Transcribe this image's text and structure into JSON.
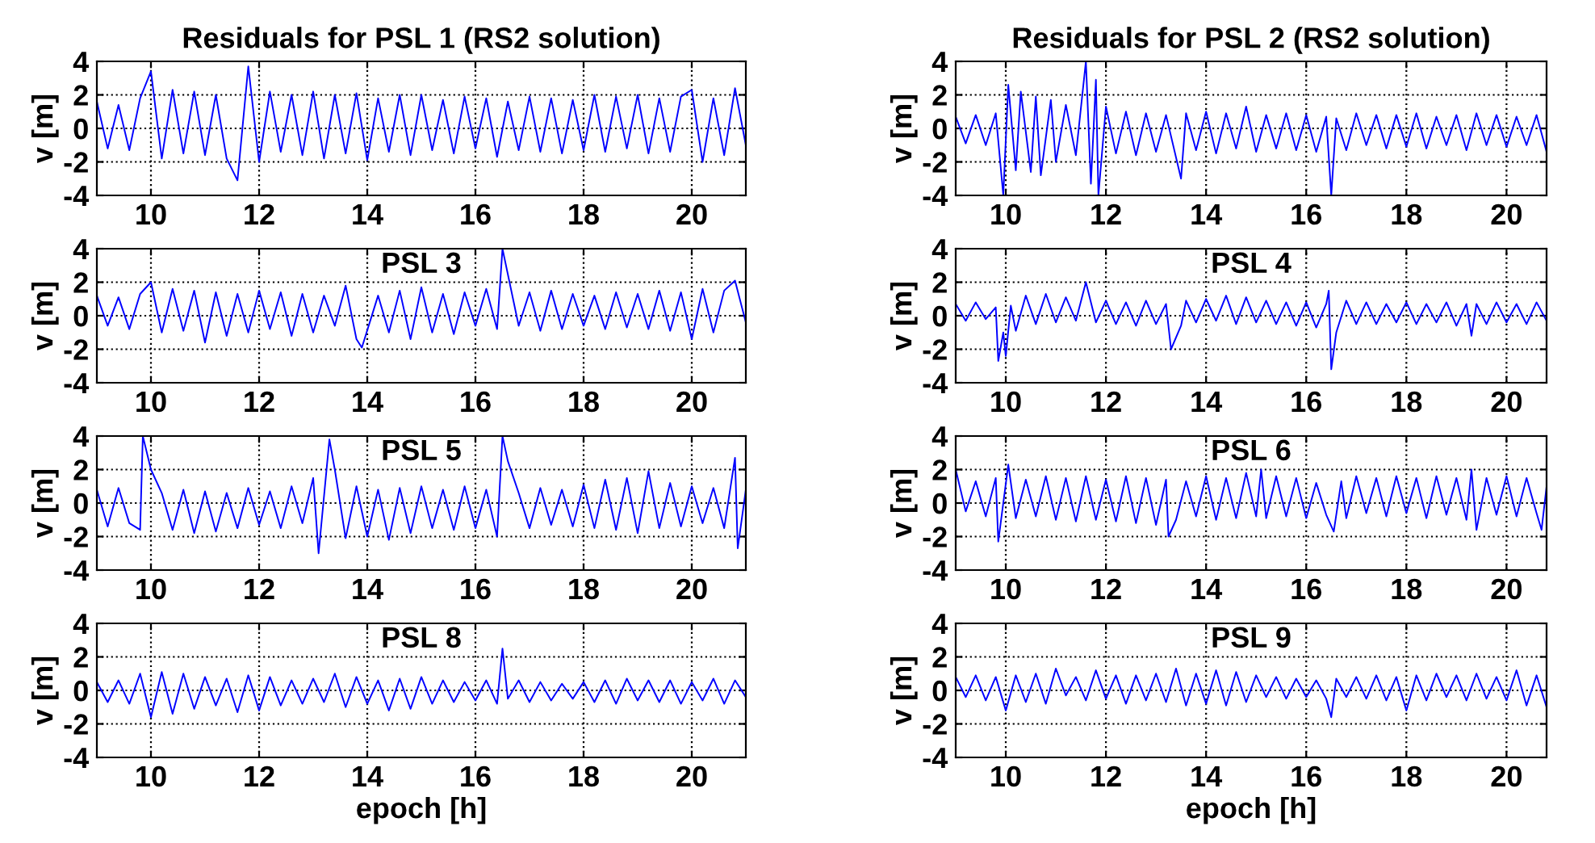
{
  "chart_data": [
    {
      "type": "line",
      "title": "Residuals for PSL 1 (RS2 solution)",
      "ylabel": "v [m]",
      "xlim": [
        9,
        21
      ],
      "ylim": [
        -4,
        4
      ],
      "xticks": [
        10,
        12,
        14,
        16,
        18,
        20
      ],
      "yticks": [
        -4,
        -2,
        0,
        2,
        4
      ],
      "grid": true,
      "line_style": "solid",
      "x": [
        9.0,
        9.2,
        9.4,
        9.6,
        9.8,
        10.0,
        10.2,
        10.4,
        10.6,
        10.8,
        11.0,
        11.2,
        11.4,
        11.6,
        11.8,
        12.0,
        12.2,
        12.4,
        12.6,
        12.8,
        13.0,
        13.2,
        13.4,
        13.6,
        13.8,
        14.0,
        14.2,
        14.4,
        14.6,
        14.8,
        15.0,
        15.2,
        15.4,
        15.6,
        15.8,
        16.0,
        16.2,
        16.4,
        16.6,
        16.8,
        17.0,
        17.2,
        17.4,
        17.6,
        17.8,
        18.0,
        18.2,
        18.4,
        18.6,
        18.8,
        19.0,
        19.2,
        19.4,
        19.6,
        19.8,
        20.0,
        20.2,
        20.4,
        20.6,
        20.8,
        21.0
      ],
      "series": [
        {
          "color": "#0000ff",
          "values": [
            1.6,
            -1.2,
            1.4,
            -1.3,
            1.8,
            3.4,
            -1.8,
            2.3,
            -1.5,
            2.2,
            -1.6,
            2.0,
            -1.8,
            -3.1,
            3.7,
            -2.0,
            2.2,
            -1.4,
            2.0,
            -1.6,
            2.2,
            -1.8,
            2.0,
            -1.5,
            2.1,
            -1.9,
            1.8,
            -1.4,
            2.0,
            -1.6,
            2.0,
            -1.3,
            1.7,
            -1.5,
            1.9,
            -1.2,
            1.8,
            -1.7,
            1.6,
            -1.3,
            1.9,
            -1.4,
            1.8,
            -1.5,
            1.7,
            -1.3,
            2.0,
            -1.4,
            1.9,
            -1.2,
            2.0,
            -1.5,
            1.8,
            -1.4,
            1.9,
            2.3,
            -2.0,
            1.8,
            -1.6,
            2.4,
            -1.0
          ]
        }
      ]
    },
    {
      "type": "line",
      "title": "Residuals for PSL 2 (RS2 solution)",
      "ylabel": "v [m]",
      "xlim": [
        9,
        20.8
      ],
      "ylim": [
        -4,
        4
      ],
      "xticks": [
        10,
        12,
        14,
        16,
        18,
        20
      ],
      "yticks": [
        -4,
        -2,
        0,
        2,
        4
      ],
      "grid": true,
      "line_style": "solid",
      "x": [
        9.0,
        9.2,
        9.4,
        9.6,
        9.8,
        9.95,
        10.05,
        10.2,
        10.3,
        10.5,
        10.6,
        10.7,
        10.9,
        11.0,
        11.2,
        11.4,
        11.6,
        11.7,
        11.8,
        11.85,
        12.0,
        12.2,
        12.4,
        12.6,
        12.8,
        13.0,
        13.2,
        13.5,
        13.6,
        13.8,
        14.0,
        14.2,
        14.4,
        14.6,
        14.8,
        15.0,
        15.2,
        15.4,
        15.6,
        15.8,
        16.0,
        16.2,
        16.4,
        16.5,
        16.6,
        16.8,
        17.0,
        17.2,
        17.4,
        17.6,
        17.8,
        18.0,
        18.2,
        18.4,
        18.6,
        18.8,
        19.0,
        19.2,
        19.4,
        19.6,
        19.8,
        20.0,
        20.2,
        20.4,
        20.6,
        20.8
      ],
      "series": [
        {
          "color": "#0000ff",
          "values": [
            0.7,
            -0.9,
            0.8,
            -1.0,
            0.9,
            -4.0,
            2.6,
            -2.5,
            2.2,
            -2.6,
            1.9,
            -2.8,
            1.7,
            -2.0,
            1.4,
            -1.6,
            4.0,
            -3.3,
            2.9,
            -4.0,
            1.3,
            -1.5,
            1.0,
            -1.6,
            0.9,
            -1.4,
            0.8,
            -3.0,
            0.9,
            -1.3,
            1.0,
            -1.5,
            0.9,
            -1.2,
            1.3,
            -1.4,
            0.8,
            -1.2,
            0.9,
            -1.3,
            0.8,
            -1.4,
            0.7,
            -4.0,
            0.6,
            -1.3,
            0.9,
            -1.0,
            0.8,
            -1.2,
            0.8,
            -1.1,
            0.9,
            -1.2,
            0.7,
            -1.0,
            0.8,
            -1.3,
            0.9,
            -1.0,
            0.8,
            -1.1,
            0.7,
            -1.0,
            0.8,
            -1.4
          ]
        }
      ]
    },
    {
      "type": "line",
      "title": "PSL 3",
      "ylabel": "v [m]",
      "xlim": [
        9,
        21
      ],
      "ylim": [
        -4,
        4
      ],
      "xticks": [
        10,
        12,
        14,
        16,
        18,
        20
      ],
      "yticks": [
        -4,
        -2,
        0,
        2,
        4
      ],
      "grid": true,
      "line_style": "solid",
      "x": [
        9.0,
        9.2,
        9.4,
        9.6,
        9.8,
        10.0,
        10.2,
        10.4,
        10.6,
        10.8,
        11.0,
        11.2,
        11.4,
        11.6,
        11.8,
        12.0,
        12.2,
        12.4,
        12.6,
        12.8,
        13.0,
        13.2,
        13.4,
        13.6,
        13.8,
        13.9,
        14.2,
        14.4,
        14.6,
        14.8,
        15.0,
        15.2,
        15.4,
        15.6,
        15.8,
        16.0,
        16.2,
        16.4,
        16.5,
        16.8,
        17.0,
        17.2,
        17.4,
        17.6,
        17.8,
        18.0,
        18.2,
        18.4,
        18.6,
        18.8,
        19.0,
        19.2,
        19.4,
        19.6,
        19.8,
        20.0,
        20.2,
        20.4,
        20.6,
        20.8,
        21.0
      ],
      "series": [
        {
          "color": "#0000ff",
          "values": [
            1.2,
            -0.6,
            1.1,
            -0.8,
            1.3,
            2.0,
            -1.0,
            1.6,
            -0.9,
            1.5,
            -1.6,
            1.4,
            -1.2,
            1.3,
            -1.0,
            1.5,
            -0.8,
            1.4,
            -1.2,
            1.3,
            -1.0,
            1.2,
            -0.6,
            1.8,
            -1.4,
            -1.9,
            1.2,
            -1.0,
            1.5,
            -1.4,
            1.7,
            -1.0,
            1.3,
            -1.1,
            1.4,
            -0.6,
            1.6,
            -0.8,
            4.0,
            -0.6,
            1.4,
            -0.9,
            1.5,
            -0.8,
            1.3,
            -0.6,
            1.2,
            -0.8,
            1.4,
            -0.7,
            1.3,
            -0.8,
            1.5,
            -0.9,
            1.4,
            -1.4,
            1.6,
            -1.0,
            1.5,
            2.1,
            -0.4
          ]
        }
      ]
    },
    {
      "type": "line",
      "title": "PSL 4",
      "ylabel": "v [m]",
      "xlim": [
        9,
        20.8
      ],
      "ylim": [
        -4,
        4
      ],
      "xticks": [
        10,
        12,
        14,
        16,
        18,
        20
      ],
      "yticks": [
        -4,
        -2,
        0,
        2,
        4
      ],
      "grid": true,
      "line_style": "solid",
      "x": [
        9.0,
        9.2,
        9.4,
        9.6,
        9.8,
        9.85,
        9.95,
        10.0,
        10.1,
        10.2,
        10.4,
        10.6,
        10.8,
        11.0,
        11.2,
        11.4,
        11.6,
        11.8,
        12.0,
        12.2,
        12.4,
        12.6,
        12.8,
        13.0,
        13.2,
        13.3,
        13.5,
        13.6,
        13.8,
        14.0,
        14.2,
        14.4,
        14.6,
        14.8,
        15.0,
        15.2,
        15.4,
        15.6,
        15.8,
        16.0,
        16.2,
        16.4,
        16.45,
        16.5,
        16.6,
        16.8,
        17.0,
        17.2,
        17.4,
        17.6,
        17.8,
        18.0,
        18.2,
        18.4,
        18.6,
        18.8,
        19.0,
        19.2,
        19.3,
        19.4,
        19.6,
        19.8,
        20.0,
        20.2,
        20.4,
        20.6,
        20.8
      ],
      "series": [
        {
          "color": "#0000ff",
          "values": [
            0.7,
            -0.3,
            0.8,
            -0.2,
            0.5,
            -2.7,
            -1.0,
            -2.4,
            0.6,
            -0.9,
            1.2,
            -0.5,
            1.3,
            -0.4,
            1.1,
            -0.3,
            2.0,
            -0.4,
            0.9,
            -0.5,
            0.8,
            -0.6,
            0.9,
            -0.5,
            0.7,
            -2.0,
            -0.6,
            0.9,
            -0.4,
            1.0,
            -0.3,
            1.2,
            -0.5,
            1.1,
            -0.4,
            0.9,
            -0.5,
            0.8,
            -0.6,
            0.8,
            -0.7,
            0.7,
            1.5,
            -3.2,
            -1.0,
            0.9,
            -0.5,
            0.8,
            -0.5,
            0.7,
            -0.4,
            0.8,
            -0.5,
            0.7,
            -0.4,
            0.8,
            -0.6,
            0.7,
            -1.2,
            0.7,
            -0.5,
            0.8,
            -0.4,
            0.7,
            -0.5,
            0.8,
            -0.3
          ]
        }
      ]
    },
    {
      "type": "line",
      "title": "PSL 5",
      "ylabel": "v [m]",
      "xlim": [
        9,
        21
      ],
      "ylim": [
        -4,
        4
      ],
      "xticks": [
        10,
        12,
        14,
        16,
        18,
        20
      ],
      "yticks": [
        -4,
        -2,
        0,
        2,
        4
      ],
      "grid": true,
      "line_style": "solid",
      "x": [
        9.0,
        9.2,
        9.4,
        9.6,
        9.8,
        9.85,
        10.0,
        10.2,
        10.4,
        10.6,
        10.8,
        11.0,
        11.2,
        11.4,
        11.6,
        11.8,
        12.0,
        12.2,
        12.4,
        12.6,
        12.8,
        13.0,
        13.1,
        13.3,
        13.4,
        13.6,
        13.8,
        14.0,
        14.2,
        14.4,
        14.6,
        14.8,
        15.0,
        15.2,
        15.4,
        15.6,
        15.8,
        16.0,
        16.2,
        16.4,
        16.5,
        16.6,
        16.8,
        17.0,
        17.2,
        17.4,
        17.6,
        17.8,
        18.0,
        18.2,
        18.4,
        18.6,
        18.8,
        19.0,
        19.2,
        19.4,
        19.6,
        19.8,
        20.0,
        20.2,
        20.4,
        20.6,
        20.8,
        20.85,
        21.0
      ],
      "series": [
        {
          "color": "#0000ff",
          "values": [
            0.8,
            -1.4,
            0.9,
            -1.2,
            -1.6,
            4.0,
            2.0,
            0.6,
            -1.6,
            0.8,
            -1.8,
            0.7,
            -1.7,
            0.6,
            -1.5,
            0.9,
            -1.3,
            0.7,
            -1.5,
            1.0,
            -1.2,
            1.5,
            -3.0,
            3.8,
            2.0,
            -2.1,
            1.0,
            -2.0,
            0.8,
            -2.2,
            0.9,
            -1.8,
            1.0,
            -1.5,
            0.8,
            -1.6,
            1.0,
            -1.5,
            0.8,
            -2.0,
            4.0,
            2.5,
            0.6,
            -1.5,
            0.9,
            -1.3,
            0.8,
            -1.4,
            1.1,
            -1.5,
            1.4,
            -1.6,
            1.5,
            -1.8,
            1.9,
            -1.5,
            1.2,
            -1.4,
            1.0,
            -1.2,
            0.9,
            -1.5,
            2.7,
            -2.7,
            0.8
          ]
        }
      ]
    },
    {
      "type": "line",
      "title": "PSL 6",
      "ylabel": "v [m]",
      "xlim": [
        9,
        20.8
      ],
      "ylim": [
        -4,
        4
      ],
      "xticks": [
        10,
        12,
        14,
        16,
        18,
        20
      ],
      "yticks": [
        -4,
        -2,
        0,
        2,
        4
      ],
      "grid": true,
      "line_style": "solid",
      "x": [
        9.0,
        9.2,
        9.4,
        9.6,
        9.8,
        9.85,
        10.05,
        10.2,
        10.4,
        10.6,
        10.8,
        11.0,
        11.2,
        11.4,
        11.6,
        11.8,
        12.0,
        12.2,
        12.4,
        12.6,
        12.8,
        13.0,
        13.2,
        13.25,
        13.4,
        13.6,
        13.8,
        14.0,
        14.2,
        14.4,
        14.6,
        14.8,
        15.0,
        15.1,
        15.2,
        15.4,
        15.6,
        15.8,
        16.0,
        16.2,
        16.4,
        16.55,
        16.7,
        16.8,
        17.0,
        17.2,
        17.4,
        17.6,
        17.8,
        18.0,
        18.2,
        18.4,
        18.6,
        18.8,
        19.0,
        19.2,
        19.3,
        19.4,
        19.6,
        19.8,
        20.0,
        20.2,
        20.4,
        20.6,
        20.7,
        20.8
      ],
      "series": [
        {
          "color": "#0000ff",
          "values": [
            2.0,
            -0.5,
            1.3,
            -0.8,
            1.5,
            -2.3,
            2.3,
            -0.9,
            1.4,
            -0.8,
            1.6,
            -1.0,
            1.5,
            -1.1,
            1.6,
            -1.0,
            1.4,
            -1.1,
            1.6,
            -1.2,
            1.5,
            -1.3,
            1.4,
            -2.0,
            -1.0,
            1.3,
            -0.8,
            1.6,
            -1.0,
            1.5,
            -0.9,
            1.8,
            -0.8,
            2.0,
            -0.9,
            1.6,
            -0.8,
            1.5,
            -0.9,
            1.2,
            -0.7,
            -1.7,
            1.3,
            -0.9,
            1.6,
            -0.6,
            1.5,
            -0.8,
            1.6,
            -0.6,
            1.5,
            -0.9,
            1.6,
            -0.7,
            1.5,
            -1.0,
            2.0,
            -1.6,
            1.5,
            -0.7,
            1.6,
            -0.8,
            1.5,
            -0.6,
            -1.6,
            1.0
          ]
        }
      ]
    },
    {
      "type": "line",
      "title": "PSL 8",
      "ylabel": "v [m]",
      "xlabel": "epoch [h]",
      "xlim": [
        9,
        21
      ],
      "ylim": [
        -4,
        4
      ],
      "xticks": [
        10,
        12,
        14,
        16,
        18,
        20
      ],
      "yticks": [
        -4,
        -2,
        0,
        2,
        4
      ],
      "grid": true,
      "line_style": "solid",
      "x": [
        9.0,
        9.2,
        9.4,
        9.6,
        9.8,
        10.0,
        10.2,
        10.4,
        10.6,
        10.8,
        11.0,
        11.2,
        11.4,
        11.6,
        11.8,
        12.0,
        12.2,
        12.4,
        12.6,
        12.8,
        13.0,
        13.2,
        13.4,
        13.6,
        13.8,
        14.0,
        14.2,
        14.4,
        14.6,
        14.8,
        15.0,
        15.2,
        15.4,
        15.6,
        15.8,
        16.0,
        16.2,
        16.4,
        16.5,
        16.6,
        16.8,
        17.0,
        17.2,
        17.4,
        17.6,
        17.8,
        18.0,
        18.2,
        18.4,
        18.6,
        18.8,
        19.0,
        19.2,
        19.4,
        19.6,
        19.8,
        20.0,
        20.2,
        20.4,
        20.6,
        20.8,
        21.0
      ],
      "series": [
        {
          "color": "#0000ff",
          "values": [
            0.5,
            -0.7,
            0.6,
            -0.8,
            1.0,
            -1.6,
            1.1,
            -1.4,
            1.0,
            -1.1,
            0.8,
            -0.9,
            0.7,
            -1.3,
            0.9,
            -1.2,
            0.8,
            -0.9,
            0.6,
            -0.8,
            0.7,
            -0.7,
            1.0,
            -1.0,
            0.8,
            -0.8,
            0.6,
            -1.2,
            0.7,
            -1.1,
            0.8,
            -0.8,
            0.6,
            -0.7,
            0.5,
            -0.6,
            0.6,
            -0.8,
            2.5,
            -0.5,
            0.6,
            -0.7,
            0.5,
            -0.6,
            0.4,
            -0.5,
            0.5,
            -0.7,
            0.6,
            -0.8,
            0.7,
            -0.6,
            0.6,
            -0.7,
            0.6,
            -0.8,
            0.5,
            -0.6,
            0.7,
            -0.8,
            0.6,
            -0.4
          ]
        }
      ]
    },
    {
      "type": "line",
      "title": "PSL 9",
      "ylabel": "v [m]",
      "xlabel": "epoch [h]",
      "xlim": [
        9,
        20.8
      ],
      "ylim": [
        -4,
        4
      ],
      "xticks": [
        10,
        12,
        14,
        16,
        18,
        20
      ],
      "yticks": [
        -4,
        -2,
        0,
        2,
        4
      ],
      "grid": true,
      "line_style": "solid",
      "x": [
        9.0,
        9.2,
        9.4,
        9.6,
        9.8,
        10.0,
        10.2,
        10.4,
        10.6,
        10.8,
        11.0,
        11.2,
        11.4,
        11.6,
        11.8,
        12.0,
        12.2,
        12.4,
        12.6,
        12.8,
        13.0,
        13.2,
        13.4,
        13.6,
        13.8,
        14.0,
        14.2,
        14.4,
        14.6,
        14.8,
        15.0,
        15.2,
        15.4,
        15.6,
        15.8,
        16.0,
        16.2,
        16.4,
        16.5,
        16.6,
        16.8,
        17.0,
        17.2,
        17.4,
        17.6,
        17.8,
        18.0,
        18.2,
        18.4,
        18.6,
        18.8,
        19.0,
        19.2,
        19.4,
        19.6,
        19.8,
        20.0,
        20.2,
        20.4,
        20.6,
        20.8
      ],
      "series": [
        {
          "color": "#0000ff",
          "values": [
            0.8,
            -0.4,
            0.9,
            -0.6,
            0.8,
            -1.2,
            0.9,
            -0.7,
            1.0,
            -0.8,
            1.3,
            -0.3,
            0.8,
            -0.6,
            1.2,
            -0.5,
            0.9,
            -0.8,
            0.9,
            -0.6,
            1.0,
            -0.7,
            1.3,
            -0.9,
            1.0,
            -0.8,
            1.2,
            -0.9,
            1.1,
            -0.7,
            0.9,
            -0.4,
            0.8,
            -0.5,
            0.7,
            -0.4,
            0.6,
            -0.5,
            -1.6,
            0.7,
            -0.4,
            0.8,
            -0.5,
            0.9,
            -0.6,
            0.8,
            -1.2,
            0.9,
            -0.6,
            1.0,
            -0.4,
            0.9,
            -0.6,
            1.0,
            -0.5,
            0.8,
            -0.6,
            1.2,
            -0.9,
            0.9,
            -1.0
          ]
        }
      ]
    }
  ]
}
